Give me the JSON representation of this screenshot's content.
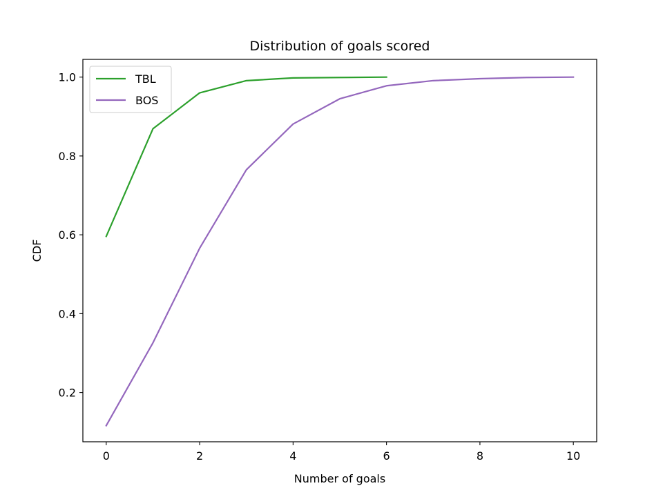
{
  "chart_data": {
    "type": "line",
    "title": "Distribution of goals scored",
    "xlabel": "Number of goals",
    "ylabel": "CDF",
    "xlim": [
      -0.5,
      10.5
    ],
    "ylim": [
      0.075,
      1.045
    ],
    "xticks": [
      0,
      2,
      4,
      6,
      8,
      10
    ],
    "yticks": [
      0.2,
      0.4,
      0.6,
      0.8,
      1.0
    ],
    "ytick_labels": [
      "0.2",
      "0.4",
      "0.6",
      "0.8",
      "1.0"
    ],
    "grid": false,
    "legend": "upper-left",
    "series": [
      {
        "name": "TBL",
        "color": "#2ca02c",
        "x": [
          0,
          1,
          2,
          3,
          4,
          5,
          6
        ],
        "y": [
          0.596,
          0.869,
          0.96,
          0.991,
          0.998,
          0.999,
          1.0
        ]
      },
      {
        "name": "BOS",
        "color": "#9467bd",
        "x": [
          0,
          1,
          2,
          3,
          4,
          5,
          6,
          7,
          8,
          9,
          10
        ],
        "y": [
          0.116,
          0.326,
          0.566,
          0.765,
          0.881,
          0.945,
          0.978,
          0.991,
          0.996,
          0.999,
          1.0
        ]
      }
    ]
  }
}
